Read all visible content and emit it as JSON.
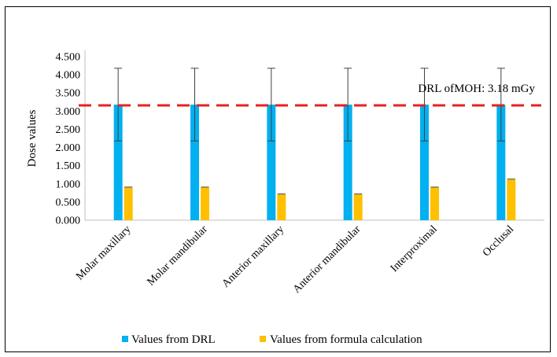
{
  "chart_data": {
    "type": "bar",
    "categories": [
      "Molar maxillary",
      "Molar mandibular",
      "Anterior maxillary",
      "Anterior mandibular",
      "Interproximal",
      "Occlusal"
    ],
    "series": [
      {
        "name": "Values from DRL",
        "values": [
          3.18,
          3.18,
          3.18,
          3.18,
          3.18,
          3.18
        ],
        "error": [
          1.0,
          1.0,
          1.0,
          1.0,
          1.0,
          1.0
        ],
        "color": "#00B0F0"
      },
      {
        "name": "Values from formula calculation",
        "values": [
          0.9,
          0.9,
          0.71,
          0.71,
          0.9,
          1.12
        ],
        "error": [
          0.01,
          0.01,
          0.01,
          0.01,
          0.01,
          0.01
        ],
        "color": "#FFC000"
      }
    ],
    "ylabel": "Dose values",
    "ylim": [
      0,
      4.5
    ],
    "yticks": [
      "0.000",
      "0.500",
      "1.000",
      "1.500",
      "2.000",
      "2.500",
      "3.000",
      "3.500",
      "4.000",
      "4.500"
    ],
    "reference_line": {
      "value": 3.18,
      "label": "DRL ofMOH: 3.18 mGy",
      "color": "#E8211F",
      "style": "dashed"
    },
    "legend_position": "bottom",
    "grid": false
  }
}
